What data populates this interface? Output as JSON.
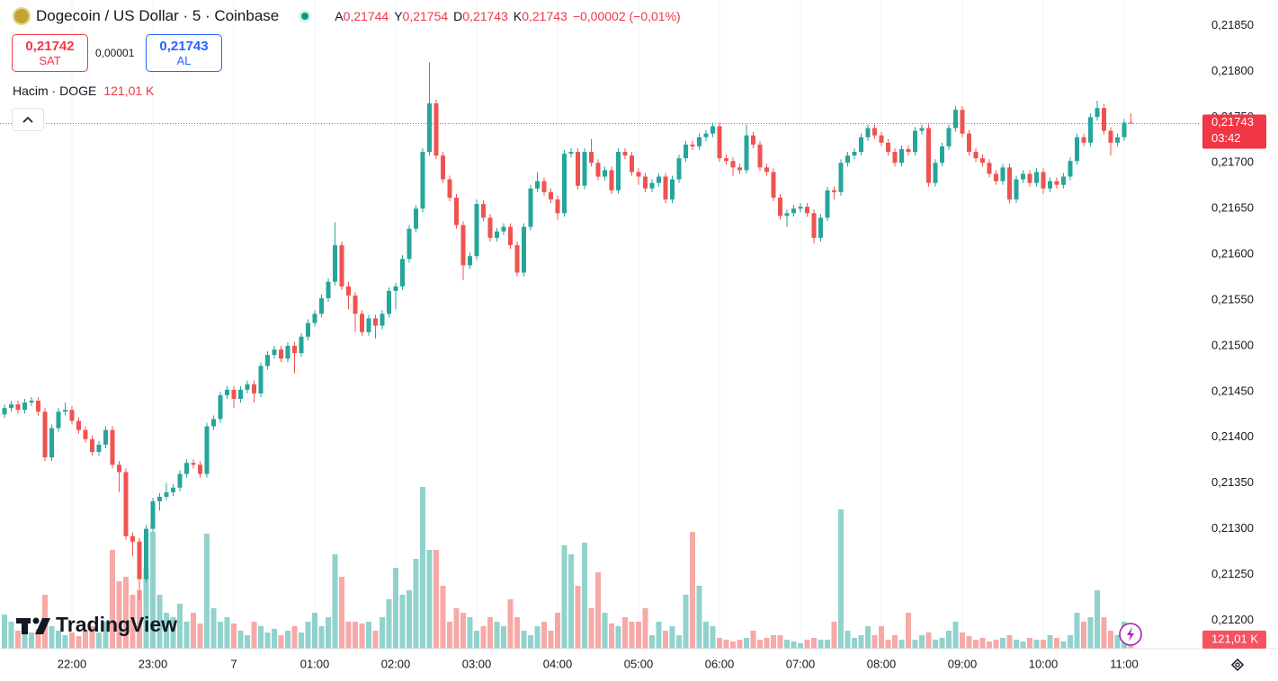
{
  "header": {
    "symbol": "Dogecoin / US Dollar · 5 · Coinbase",
    "ohlc_keys": [
      "A",
      "Y",
      "D",
      "K"
    ],
    "ohlc_values": [
      "0,21744",
      "0,21754",
      "0,21743",
      "0,21743"
    ],
    "change": "−0,00002 (−0,01%)",
    "sell_price": "0,21742",
    "sell_label": "SAT",
    "spread": "0,00001",
    "buy_price": "0,21743",
    "buy_label": "AL",
    "volume_title": "Hacim · DOGE",
    "volume_value": "121,01 K"
  },
  "logo": "TradingView",
  "chart_data": {
    "type": "candlestick",
    "up_color": "#26a69a",
    "down_color": "#ef5350",
    "volume_up_color": "rgba(38,166,154,0.5)",
    "volume_down_color": "rgba(239,83,80,0.5)",
    "grid": true,
    "ylim": [
      0.21169,
      0.21878
    ],
    "yticks": [
      {
        "value": 0.212,
        "label": "0,21200"
      },
      {
        "value": 0.2125,
        "label": "0,21250"
      },
      {
        "value": 0.213,
        "label": "0,21300"
      },
      {
        "value": 0.2135,
        "label": "0,21350"
      },
      {
        "value": 0.214,
        "label": "0,21400"
      },
      {
        "value": 0.2145,
        "label": "0,21450"
      },
      {
        "value": 0.215,
        "label": "0,21500"
      },
      {
        "value": 0.2155,
        "label": "0,21550"
      },
      {
        "value": 0.216,
        "label": "0,21600"
      },
      {
        "value": 0.2165,
        "label": "0,21650"
      },
      {
        "value": 0.217,
        "label": "0,21700"
      },
      {
        "value": 0.2175,
        "label": "0,21750"
      },
      {
        "value": 0.218,
        "label": "0,21800"
      },
      {
        "value": 0.2185,
        "label": "0,21850"
      }
    ],
    "volume_lim": [
      0,
      2400000
    ],
    "last_price_label": "0,21743",
    "countdown": "03:42",
    "volume_badge": "121,01 K",
    "categories": [
      null,
      null,
      null,
      null,
      null,
      null,
      null,
      null,
      null,
      null,
      "22:00",
      null,
      null,
      null,
      null,
      null,
      null,
      null,
      null,
      null,
      null,
      null,
      "23:00",
      null,
      null,
      null,
      null,
      null,
      null,
      null,
      null,
      null,
      null,
      null,
      "7",
      null,
      null,
      null,
      null,
      null,
      null,
      null,
      null,
      null,
      null,
      null,
      "01:00",
      null,
      null,
      null,
      null,
      null,
      null,
      null,
      null,
      null,
      null,
      null,
      "02:00",
      null,
      null,
      null,
      null,
      null,
      null,
      null,
      null,
      null,
      null,
      null,
      "03:00",
      null,
      null,
      null,
      null,
      null,
      null,
      null,
      null,
      null,
      null,
      null,
      "04:00",
      null,
      null,
      null,
      null,
      null,
      null,
      null,
      null,
      null,
      null,
      null,
      "05:00",
      null,
      null,
      null,
      null,
      null,
      null,
      null,
      null,
      null,
      null,
      null,
      "06:00",
      null,
      null,
      null,
      null,
      null,
      null,
      null,
      null,
      null,
      null,
      null,
      "07:00",
      null,
      null,
      null,
      null,
      null,
      null,
      null,
      null,
      null,
      null,
      null,
      "08:00",
      null,
      null,
      null,
      null,
      null,
      null,
      null,
      null,
      null,
      null,
      null,
      "09:00",
      null,
      null,
      null,
      null,
      null,
      null,
      null,
      null,
      null,
      null,
      null,
      "10:00",
      null,
      null,
      null,
      null,
      null,
      null,
      null,
      null,
      null,
      null,
      null,
      "11:00",
      null
    ],
    "open": [
      0.21425,
      0.21432,
      0.21436,
      0.2143,
      0.21438,
      0.2144,
      0.21428,
      0.21378,
      0.2141,
      0.21428,
      0.2143,
      0.21418,
      0.21408,
      0.21398,
      0.21384,
      0.21392,
      0.21408,
      0.2137,
      0.21362,
      0.21292,
      0.21286,
      0.21245,
      0.213,
      0.2133,
      0.21335,
      0.2134,
      0.21345,
      0.2136,
      0.21372,
      0.2137,
      0.2136,
      0.21412,
      0.2142,
      0.21446,
      0.21452,
      0.21442,
      0.21452,
      0.21458,
      0.21448,
      0.21478,
      0.2149,
      0.21496,
      0.21486,
      0.215,
      0.21492,
      0.2151,
      0.21525,
      0.21535,
      0.21552,
      0.2157,
      0.2161,
      0.21565,
      0.21555,
      0.21535,
      0.21515,
      0.2153,
      0.21522,
      0.21535,
      0.2156,
      0.21565,
      0.21595,
      0.21628,
      0.2165,
      0.21712,
      0.21765,
      0.21708,
      0.21682,
      0.21662,
      0.21632,
      0.21588,
      0.21598,
      0.21655,
      0.2164,
      0.21618,
      0.21625,
      0.2163,
      0.2161,
      0.2158,
      0.2163,
      0.21672,
      0.2168,
      0.21668,
      0.2166,
      0.21645,
      0.2171,
      0.21712,
      0.21675,
      0.21712,
      0.217,
      0.21685,
      0.21692,
      0.2167,
      0.21712,
      0.21708,
      0.2169,
      0.21685,
      0.21672,
      0.21678,
      0.21685,
      0.2166,
      0.21682,
      0.21705,
      0.2172,
      0.21718,
      0.21728,
      0.21732,
      0.2174,
      0.21705,
      0.21702,
      0.21695,
      0.21692,
      0.2173,
      0.2172,
      0.21695,
      0.2169,
      0.21662,
      0.21642,
      0.21645,
      0.2165,
      0.21652,
      0.21645,
      0.21618,
      0.2164,
      0.2167,
      0.21668,
      0.217,
      0.21708,
      0.21712,
      0.21728,
      0.21738,
      0.2173,
      0.21722,
      0.21712,
      0.217,
      0.21715,
      0.21712,
      0.21735,
      0.21738,
      0.21678,
      0.217,
      0.21718,
      0.21738,
      0.21758,
      0.21732,
      0.21712,
      0.21705,
      0.217,
      0.21688,
      0.2168,
      0.21695,
      0.2166,
      0.21682,
      0.21688,
      0.21678,
      0.2169,
      0.21672,
      0.2168,
      0.21676,
      0.21685,
      0.21702,
      0.21728,
      0.21722,
      0.2175,
      0.2176,
      0.21735,
      0.21722,
      0.21728,
      0.21744
    ],
    "high": [
      0.21436,
      0.2144,
      0.2144,
      0.21442,
      0.21444,
      0.21444,
      0.21432,
      0.21414,
      0.21432,
      0.21438,
      0.21434,
      0.21422,
      0.21412,
      0.21402,
      0.21396,
      0.21412,
      0.21412,
      0.21374,
      0.21366,
      0.21296,
      0.2129,
      0.21304,
      0.21334,
      0.21339,
      0.2135,
      0.21349,
      0.21364,
      0.21376,
      0.21376,
      0.21374,
      0.21416,
      0.21424,
      0.2145,
      0.21456,
      0.21456,
      0.21456,
      0.21462,
      0.21462,
      0.21482,
      0.21494,
      0.215,
      0.215,
      0.21504,
      0.21504,
      0.21514,
      0.21529,
      0.21539,
      0.21556,
      0.21574,
      0.21635,
      0.21614,
      0.2157,
      0.21559,
      0.21539,
      0.21534,
      0.21534,
      0.21539,
      0.21564,
      0.21569,
      0.21599,
      0.21632,
      0.21654,
      0.21716,
      0.2181,
      0.21769,
      0.21712,
      0.21686,
      0.21666,
      0.21636,
      0.21602,
      0.2166,
      0.21659,
      0.21644,
      0.21629,
      0.21634,
      0.21634,
      0.21614,
      0.21634,
      0.21676,
      0.2169,
      0.21684,
      0.21672,
      0.21664,
      0.21714,
      0.21716,
      0.21716,
      0.21716,
      0.21726,
      0.21704,
      0.21696,
      0.21696,
      0.21716,
      0.21716,
      0.21712,
      0.21694,
      0.21689,
      0.21682,
      0.21689,
      0.21689,
      0.21686,
      0.21709,
      0.21724,
      0.21724,
      0.21732,
      0.21736,
      0.21744,
      0.21744,
      0.21709,
      0.21706,
      0.21699,
      0.21742,
      0.21734,
      0.21724,
      0.21699,
      0.21694,
      0.21666,
      0.21649,
      0.21654,
      0.21656,
      0.21656,
      0.21649,
      0.21644,
      0.21674,
      0.21674,
      0.21704,
      0.21712,
      0.21716,
      0.21732,
      0.21742,
      0.21742,
      0.21734,
      0.21726,
      0.21716,
      0.21719,
      0.21719,
      0.21739,
      0.21742,
      0.21742,
      0.21704,
      0.21722,
      0.21742,
      0.21762,
      0.21762,
      0.21736,
      0.21716,
      0.21709,
      0.21704,
      0.21692,
      0.21699,
      0.21699,
      0.21686,
      0.21692,
      0.21692,
      0.21694,
      0.21694,
      0.21684,
      0.21684,
      0.21689,
      0.21706,
      0.21732,
      0.21732,
      0.21754,
      0.21768,
      0.21764,
      0.21739,
      0.21732,
      0.21748,
      0.21754
    ],
    "low": [
      0.21421,
      0.21428,
      0.21426,
      0.21426,
      0.21434,
      0.21424,
      0.21374,
      0.21374,
      0.21406,
      0.21424,
      0.21414,
      0.21404,
      0.21394,
      0.2138,
      0.2138,
      0.21388,
      0.21366,
      0.2134,
      0.21288,
      0.2127,
      0.21222,
      0.21241,
      0.21296,
      0.2132,
      0.21331,
      0.21336,
      0.21341,
      0.21356,
      0.21366,
      0.21356,
      0.21356,
      0.21408,
      0.21416,
      0.21442,
      0.21432,
      0.21438,
      0.21448,
      0.21438,
      0.21444,
      0.21474,
      0.21486,
      0.21482,
      0.21482,
      0.2147,
      0.21488,
      0.21506,
      0.21521,
      0.21531,
      0.21548,
      0.21566,
      0.21561,
      0.2154,
      0.21515,
      0.21511,
      0.21511,
      0.21508,
      0.21518,
      0.21531,
      0.2154,
      0.21561,
      0.21591,
      0.21624,
      0.21646,
      0.21708,
      0.21704,
      0.21678,
      0.21658,
      0.21628,
      0.21572,
      0.21584,
      0.21594,
      0.21636,
      0.21614,
      0.21614,
      0.21621,
      0.21606,
      0.21576,
      0.21576,
      0.21626,
      0.21668,
      0.21664,
      0.21656,
      0.21638,
      0.21641,
      0.21706,
      0.21671,
      0.21671,
      0.21696,
      0.21681,
      0.21681,
      0.21666,
      0.21666,
      0.21704,
      0.21686,
      0.21676,
      0.21668,
      0.21668,
      0.21674,
      0.21656,
      0.21656,
      0.21678,
      0.21701,
      0.21714,
      0.21714,
      0.21724,
      0.21728,
      0.21701,
      0.21698,
      0.21686,
      0.21688,
      0.21688,
      0.21716,
      0.21691,
      0.21686,
      0.21658,
      0.21638,
      0.2163,
      0.21641,
      0.21646,
      0.21641,
      0.21612,
      0.21614,
      0.21636,
      0.2166,
      0.21664,
      0.21696,
      0.21704,
      0.21708,
      0.21724,
      0.21726,
      0.21718,
      0.21708,
      0.21696,
      0.21696,
      0.21708,
      0.21708,
      0.21731,
      0.21674,
      0.21674,
      0.21696,
      0.21714,
      0.21734,
      0.21728,
      0.21708,
      0.21701,
      0.21696,
      0.21684,
      0.21676,
      0.21676,
      0.21656,
      0.21656,
      0.21678,
      0.21674,
      0.21674,
      0.21666,
      0.21668,
      0.21672,
      0.21672,
      0.21681,
      0.21698,
      0.21718,
      0.21718,
      0.21746,
      0.21731,
      0.21708,
      0.21718,
      0.21724,
      0.21743
    ],
    "close": [
      0.21432,
      0.21436,
      0.2143,
      0.21438,
      0.2144,
      0.21428,
      0.21378,
      0.2141,
      0.21428,
      0.2143,
      0.21418,
      0.21408,
      0.21398,
      0.21384,
      0.21392,
      0.21408,
      0.2137,
      0.21362,
      0.21292,
      0.21286,
      0.21245,
      0.213,
      0.2133,
      0.21335,
      0.2134,
      0.21345,
      0.2136,
      0.21372,
      0.2137,
      0.2136,
      0.21412,
      0.2142,
      0.21446,
      0.21452,
      0.21442,
      0.21452,
      0.21458,
      0.21448,
      0.21478,
      0.2149,
      0.21496,
      0.21486,
      0.215,
      0.21492,
      0.2151,
      0.21525,
      0.21535,
      0.21552,
      0.2157,
      0.2161,
      0.21565,
      0.21555,
      0.21535,
      0.21515,
      0.2153,
      0.21522,
      0.21535,
      0.2156,
      0.21565,
      0.21595,
      0.21628,
      0.2165,
      0.21712,
      0.21765,
      0.21708,
      0.21682,
      0.21662,
      0.21632,
      0.21588,
      0.21598,
      0.21655,
      0.2164,
      0.21618,
      0.21625,
      0.2163,
      0.2161,
      0.2158,
      0.2163,
      0.21672,
      0.2168,
      0.21668,
      0.2166,
      0.21645,
      0.2171,
      0.21712,
      0.21675,
      0.21712,
      0.217,
      0.21685,
      0.21692,
      0.2167,
      0.21712,
      0.21708,
      0.2169,
      0.21685,
      0.21672,
      0.21678,
      0.21685,
      0.2166,
      0.21682,
      0.21705,
      0.2172,
      0.21718,
      0.21728,
      0.21732,
      0.2174,
      0.21705,
      0.21702,
      0.21695,
      0.21692,
      0.2173,
      0.2172,
      0.21695,
      0.2169,
      0.21662,
      0.21642,
      0.21645,
      0.2165,
      0.21652,
      0.21645,
      0.21618,
      0.2164,
      0.2167,
      0.21668,
      0.217,
      0.21708,
      0.21712,
      0.21728,
      0.21738,
      0.2173,
      0.21722,
      0.21712,
      0.217,
      0.21715,
      0.21712,
      0.21735,
      0.21738,
      0.21678,
      0.217,
      0.21718,
      0.21738,
      0.21758,
      0.21732,
      0.21712,
      0.21705,
      0.217,
      0.21688,
      0.2168,
      0.21695,
      0.2166,
      0.21682,
      0.21688,
      0.21678,
      0.2169,
      0.21672,
      0.2168,
      0.21676,
      0.21685,
      0.21702,
      0.21728,
      0.21722,
      0.2175,
      0.2176,
      0.21735,
      0.21722,
      0.21728,
      0.21744,
      0.21743
    ],
    "volume": [
      456000,
      360000,
      240000,
      336000,
      216000,
      264000,
      720000,
      300000,
      240000,
      180000,
      216000,
      168000,
      240000,
      300000,
      216000,
      360000,
      1320000,
      900000,
      960000,
      720000,
      780000,
      1080000,
      1560000,
      720000,
      480000,
      420000,
      600000,
      360000,
      480000,
      336000,
      1536000,
      540000,
      360000,
      420000,
      336000,
      240000,
      180000,
      360000,
      300000,
      216000,
      264000,
      180000,
      240000,
      300000,
      216000,
      360000,
      480000,
      300000,
      420000,
      1260000,
      960000,
      360000,
      360000,
      336000,
      360000,
      240000,
      420000,
      660000,
      1080000,
      720000,
      780000,
      1200000,
      2160000,
      1320000,
      1320000,
      840000,
      360000,
      540000,
      480000,
      420000,
      240000,
      300000,
      420000,
      360000,
      300000,
      660000,
      420000,
      240000,
      180000,
      300000,
      360000,
      240000,
      480000,
      1380000,
      1260000,
      840000,
      1416000,
      540000,
      1020000,
      480000,
      336000,
      300000,
      420000,
      360000,
      360000,
      540000,
      180000,
      360000,
      240000,
      300000,
      180000,
      720000,
      1560000,
      840000,
      360000,
      300000,
      144000,
      120000,
      96000,
      120000,
      144000,
      240000,
      120000,
      144000,
      180000,
      180000,
      120000,
      96000,
      72000,
      120000,
      144000,
      120000,
      120000,
      360000,
      1860000,
      240000,
      144000,
      180000,
      300000,
      180000,
      300000,
      120000,
      180000,
      120000,
      480000,
      120000,
      180000,
      216000,
      120000,
      144000,
      240000,
      360000,
      216000,
      168000,
      120000,
      144000,
      96000,
      120000,
      144000,
      180000,
      120000,
      96000,
      144000,
      120000,
      120000,
      180000,
      144000,
      96000,
      180000,
      480000,
      360000,
      420000,
      780000,
      420000,
      240000,
      180000,
      360000,
      121010
    ]
  }
}
